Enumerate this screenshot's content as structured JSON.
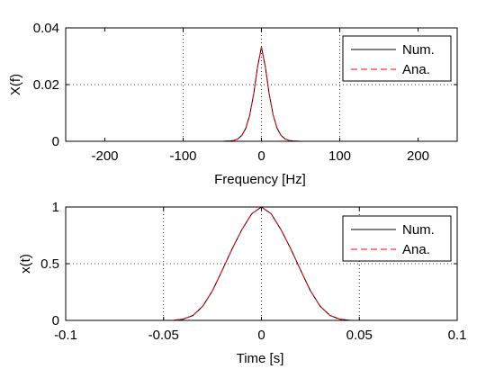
{
  "chart_data": [
    {
      "type": "line",
      "xlabel": "Frequency [Hz]",
      "ylabel": "X(f)",
      "xlim": [
        -250,
        250
      ],
      "ylim": [
        0,
        0.04
      ],
      "xticks": [
        -200,
        -100,
        0,
        100,
        200
      ],
      "xtick_labels": [
        "-200",
        "-100",
        "0",
        "100",
        "200"
      ],
      "yticks": [
        0,
        0.02,
        0.04
      ],
      "ytick_labels": [
        "0",
        "0.02",
        "0.04"
      ],
      "grid": true,
      "legend_position": "top-right",
      "series": [
        {
          "name": "Num.",
          "color": "#000000",
          "dash": "solid",
          "x": [
            -100,
            -80,
            -60,
            -50,
            -40,
            -35,
            -30,
            -25,
            -20,
            -15,
            -10,
            -5,
            0,
            5,
            10,
            15,
            20,
            25,
            30,
            35,
            40,
            50,
            60,
            80,
            100
          ],
          "y": [
            0,
            0,
            0,
            1e-05,
            0.00012,
            0.00033,
            0.00086,
            0.0021,
            0.0046,
            0.0092,
            0.0165,
            0.0262,
            0.0333,
            0.0262,
            0.0165,
            0.0092,
            0.0046,
            0.0021,
            0.00086,
            0.00033,
            0.00012,
            1e-05,
            0,
            0,
            0
          ]
        },
        {
          "name": "Ana.",
          "color": "#ff0000",
          "dash": "dashed",
          "x": [
            -100,
            -80,
            -60,
            -50,
            -40,
            -35,
            -30,
            -25,
            -20,
            -15,
            -10,
            -5,
            0,
            5,
            10,
            15,
            20,
            25,
            30,
            35,
            40,
            50,
            60,
            80,
            100
          ],
          "y": [
            0,
            0,
            0,
            1e-05,
            0.00012,
            0.00033,
            0.00086,
            0.0021,
            0.0046,
            0.0092,
            0.0165,
            0.0262,
            0.0333,
            0.0262,
            0.0165,
            0.0092,
            0.0046,
            0.0021,
            0.00086,
            0.00033,
            0.00012,
            1e-05,
            0,
            0,
            0
          ]
        }
      ]
    },
    {
      "type": "line",
      "xlabel": "Time [s]",
      "ylabel": "x(t)",
      "xlim": [
        -0.1,
        0.1
      ],
      "ylim": [
        0,
        1
      ],
      "xticks": [
        -0.1,
        -0.05,
        0,
        0.05,
        0.1
      ],
      "xtick_labels": [
        "-0.1",
        "-0.05",
        "0",
        "0.05",
        "0.1"
      ],
      "yticks": [
        0,
        0.5,
        1
      ],
      "ytick_labels": [
        "0",
        "0.5",
        "1"
      ],
      "grid": true,
      "legend_position": "top-right",
      "series": [
        {
          "name": "Num.",
          "color": "#000000",
          "dash": "solid",
          "x": [
            -0.1,
            -0.08,
            -0.06,
            -0.05,
            -0.045,
            -0.04,
            -0.035,
            -0.03,
            -0.025,
            -0.02,
            -0.015,
            -0.01,
            -0.005,
            0,
            0.005,
            0.01,
            0.015,
            0.02,
            0.025,
            0.03,
            0.035,
            0.04,
            0.045,
            0.05,
            0.06,
            0.08,
            0.1
          ],
          "y": [
            0,
            0,
            0,
            0.0001,
            0.0014,
            0.0112,
            0.0435,
            0.125,
            0.262,
            0.443,
            0.63,
            0.8,
            0.94,
            1,
            0.94,
            0.8,
            0.63,
            0.443,
            0.262,
            0.125,
            0.0435,
            0.0112,
            0.0014,
            0.0001,
            0,
            0,
            0
          ]
        },
        {
          "name": "Ana.",
          "color": "#ff0000",
          "dash": "dashed",
          "x": [
            -0.1,
            -0.08,
            -0.06,
            -0.05,
            -0.045,
            -0.04,
            -0.035,
            -0.03,
            -0.025,
            -0.02,
            -0.015,
            -0.01,
            -0.005,
            0,
            0.005,
            0.01,
            0.015,
            0.02,
            0.025,
            0.03,
            0.035,
            0.04,
            0.045,
            0.05,
            0.06,
            0.08,
            0.1
          ],
          "y": [
            0,
            0,
            0,
            0.0001,
            0.0014,
            0.0112,
            0.0435,
            0.125,
            0.262,
            0.443,
            0.63,
            0.8,
            0.94,
            1,
            0.94,
            0.8,
            0.63,
            0.443,
            0.262,
            0.125,
            0.0435,
            0.0112,
            0.0014,
            0.0001,
            0,
            0,
            0
          ]
        }
      ]
    }
  ]
}
